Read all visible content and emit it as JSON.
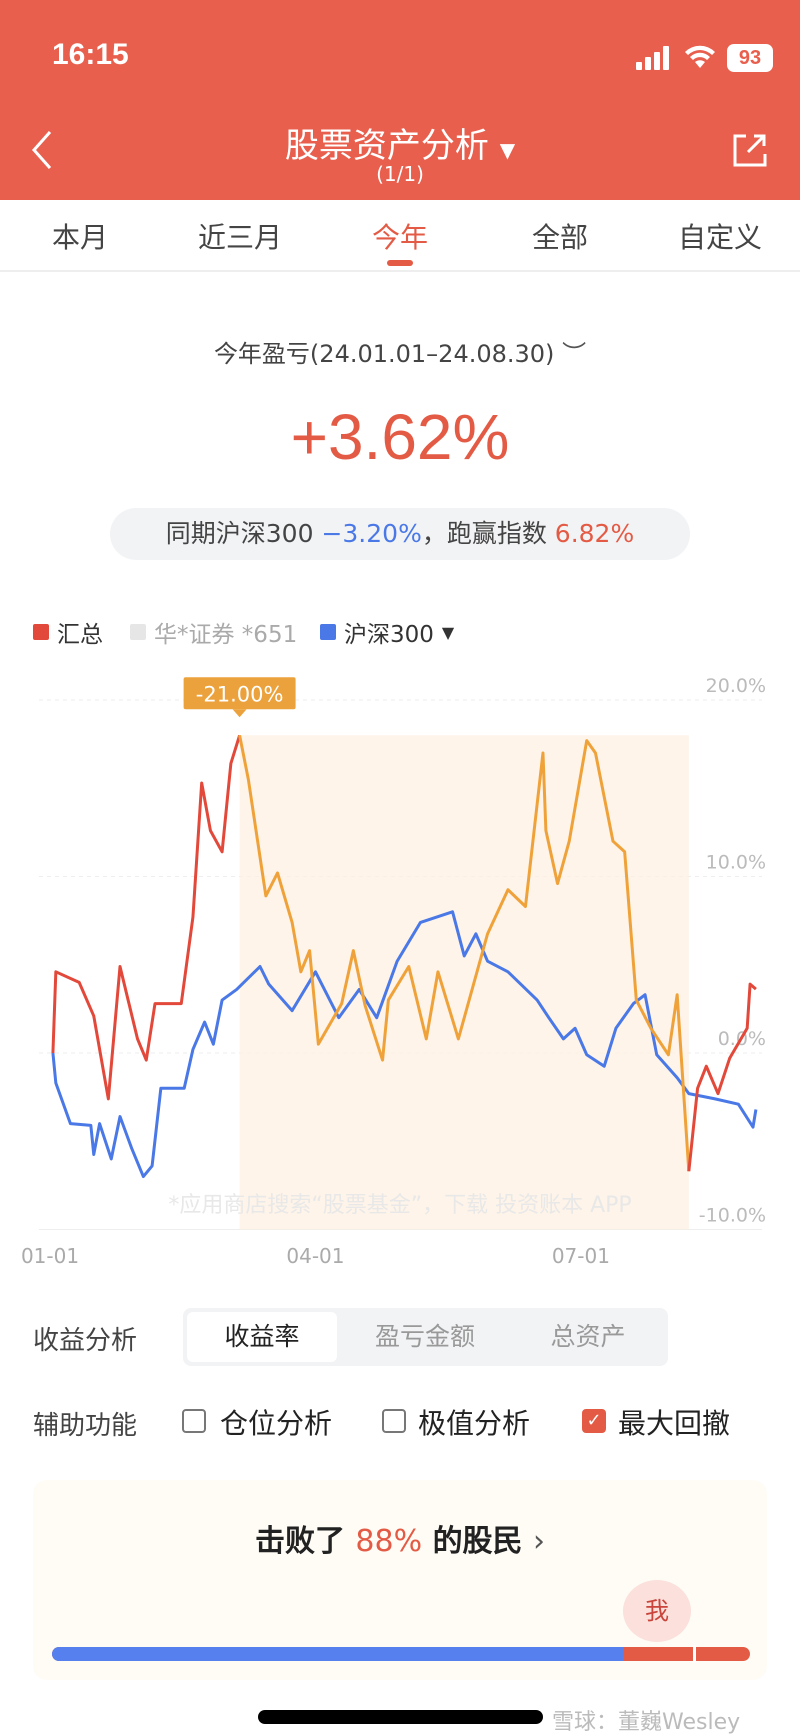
{
  "status_bar": {
    "time": "16:15",
    "battery": "93"
  },
  "header": {
    "title": "股票资产分析",
    "subtitle": "(1/1)"
  },
  "tabs": [
    {
      "label": "本月"
    },
    {
      "label": "近三月"
    },
    {
      "label": "今年",
      "active": true
    },
    {
      "label": "全部"
    },
    {
      "label": "自定义"
    }
  ],
  "summary": {
    "label": "今年盈亏(24.01.01–24.08.30)",
    "value": "+3.62%",
    "compare_prefix": "同期沪深300",
    "compare_value": "−3.20%",
    "beat_prefix": "，跑赢指数",
    "beat_value": "6.82%"
  },
  "legend": [
    {
      "label": "汇总",
      "color": "#e2493a"
    },
    {
      "label": "华*证券 *651",
      "color": "#e6e6e6"
    },
    {
      "label": "沪深300",
      "color": "#4a78e6"
    }
  ],
  "chart_data": {
    "type": "line",
    "ylim": [
      -10,
      20
    ],
    "yticks": [
      "20.0%",
      "10.0%",
      "0.0%",
      "-10.0%"
    ],
    "ytick_values": [
      20,
      10,
      0,
      -10
    ],
    "xticks": [
      "01-01",
      "04-01",
      "07-01"
    ],
    "grid": true,
    "max_drawdown": {
      "label": "-21.00%",
      "start": "03-06",
      "end": "08-07",
      "color": "#f0a23a"
    },
    "series": [
      {
        "name": "汇总",
        "color": "#e2493a",
        "points": [
          [
            "01-02",
            0
          ],
          [
            "01-03",
            4.6
          ],
          [
            "01-11",
            4.0
          ],
          [
            "01-16",
            2.1
          ],
          [
            "01-21",
            -2.6
          ],
          [
            "01-25",
            4.9
          ],
          [
            "01-31",
            0.8
          ],
          [
            "02-03",
            -0.4
          ],
          [
            "02-06",
            2.8
          ],
          [
            "02-15",
            2.8
          ],
          [
            "02-19",
            7.7
          ],
          [
            "02-22",
            15.3
          ],
          [
            "02-25",
            12.6
          ],
          [
            "02-29",
            11.4
          ],
          [
            "03-03",
            16.4
          ],
          [
            "03-06",
            18.0
          ],
          [
            "03-09",
            15.5
          ],
          [
            "03-15",
            8.9
          ],
          [
            "03-19",
            10.2
          ],
          [
            "03-24",
            7.4
          ],
          [
            "03-27",
            4.6
          ],
          [
            "03-30",
            5.8
          ],
          [
            "04-02",
            0.5
          ],
          [
            "04-10",
            2.8
          ],
          [
            "04-14",
            5.8
          ],
          [
            "04-18",
            2.7
          ],
          [
            "04-24",
            -0.4
          ],
          [
            "04-26",
            3.0
          ],
          [
            "05-03",
            4.9
          ],
          [
            "05-09",
            0.8
          ],
          [
            "05-13",
            4.6
          ],
          [
            "05-20",
            0.8
          ],
          [
            "05-30",
            6.75
          ],
          [
            "06-06",
            9.25
          ],
          [
            "06-12",
            8.3
          ],
          [
            "06-18",
            17.0
          ],
          [
            "06-19",
            12.6
          ],
          [
            "06-23",
            9.6
          ],
          [
            "06-27",
            12.0
          ],
          [
            "07-03",
            17.7
          ],
          [
            "07-06",
            17.0
          ],
          [
            "07-12",
            12.0
          ],
          [
            "07-16",
            11.4
          ],
          [
            "07-20",
            3.0
          ],
          [
            "07-25",
            1.4
          ],
          [
            "07-31",
            -0.1
          ],
          [
            "08-03",
            3.3
          ],
          [
            "08-07",
            -6.7
          ],
          [
            "08-10",
            -2.0
          ],
          [
            "08-13",
            -0.75
          ],
          [
            "08-17",
            -2.3
          ],
          [
            "08-21",
            -0.3
          ],
          [
            "08-27",
            1.4
          ],
          [
            "08-28",
            3.9
          ],
          [
            "08-30",
            3.62
          ]
        ]
      },
      {
        "name": "沪深300",
        "color": "#4a78e6",
        "points": [
          [
            "01-02",
            0
          ],
          [
            "01-03",
            -1.7
          ],
          [
            "01-08",
            -4
          ],
          [
            "01-15",
            -4.1
          ],
          [
            "01-16",
            -5.75
          ],
          [
            "01-18",
            -4
          ],
          [
            "01-22",
            -6
          ],
          [
            "01-25",
            -3.6
          ],
          [
            "01-29",
            -5.4
          ],
          [
            "02-02",
            -7
          ],
          [
            "02-05",
            -6.4
          ],
          [
            "02-08",
            -2
          ],
          [
            "02-16",
            -2
          ],
          [
            "02-19",
            0.2
          ],
          [
            "02-23",
            1.75
          ],
          [
            "02-26",
            0.5
          ],
          [
            "02-29",
            3
          ],
          [
            "03-05",
            3.6
          ],
          [
            "03-13",
            4.9
          ],
          [
            "03-16",
            3.9
          ],
          [
            "03-24",
            2.4
          ],
          [
            "04-01",
            4.6
          ],
          [
            "04-09",
            2
          ],
          [
            "04-16",
            3.6
          ],
          [
            "04-22",
            2
          ],
          [
            "04-29",
            5.2
          ],
          [
            "05-07",
            7.4
          ],
          [
            "05-18",
            8
          ],
          [
            "05-22",
            5.5
          ],
          [
            "05-26",
            6.75
          ],
          [
            "05-30",
            5.2
          ],
          [
            "06-06",
            4.6
          ],
          [
            "06-16",
            3
          ],
          [
            "06-20",
            2
          ],
          [
            "06-25",
            0.8
          ],
          [
            "06-29",
            1.4
          ],
          [
            "07-03",
            -0.1
          ],
          [
            "07-09",
            -0.75
          ],
          [
            "07-13",
            1.4
          ],
          [
            "07-19",
            2.8
          ],
          [
            "07-23",
            3.3
          ],
          [
            "07-27",
            -0.1
          ],
          [
            "08-03",
            -1.4
          ],
          [
            "08-07",
            -2.3
          ],
          [
            "08-16",
            -2.6
          ],
          [
            "08-24",
            -2.9
          ],
          [
            "08-29",
            -4.2
          ],
          [
            "08-30",
            -3.2
          ]
        ]
      }
    ]
  },
  "chart_watermark": "*应用商店搜索“股票基金”，下载 投资账本 APP",
  "controls": {
    "analysis_label": "收益分析",
    "analysis_options": [
      "收益率",
      "盈亏金额",
      "总资产"
    ],
    "aux_label": "辅助功能",
    "aux_options": [
      {
        "label": "仓位分析",
        "checked": false
      },
      {
        "label": "极值分析",
        "checked": false
      },
      {
        "label": "最大回撤",
        "checked": true
      }
    ]
  },
  "rank": {
    "prefix": "击败了",
    "percent": "88%",
    "suffix": "的股民",
    "me": "我",
    "fraction": 0.88
  },
  "watermark": "雪球：董巍Wesley"
}
